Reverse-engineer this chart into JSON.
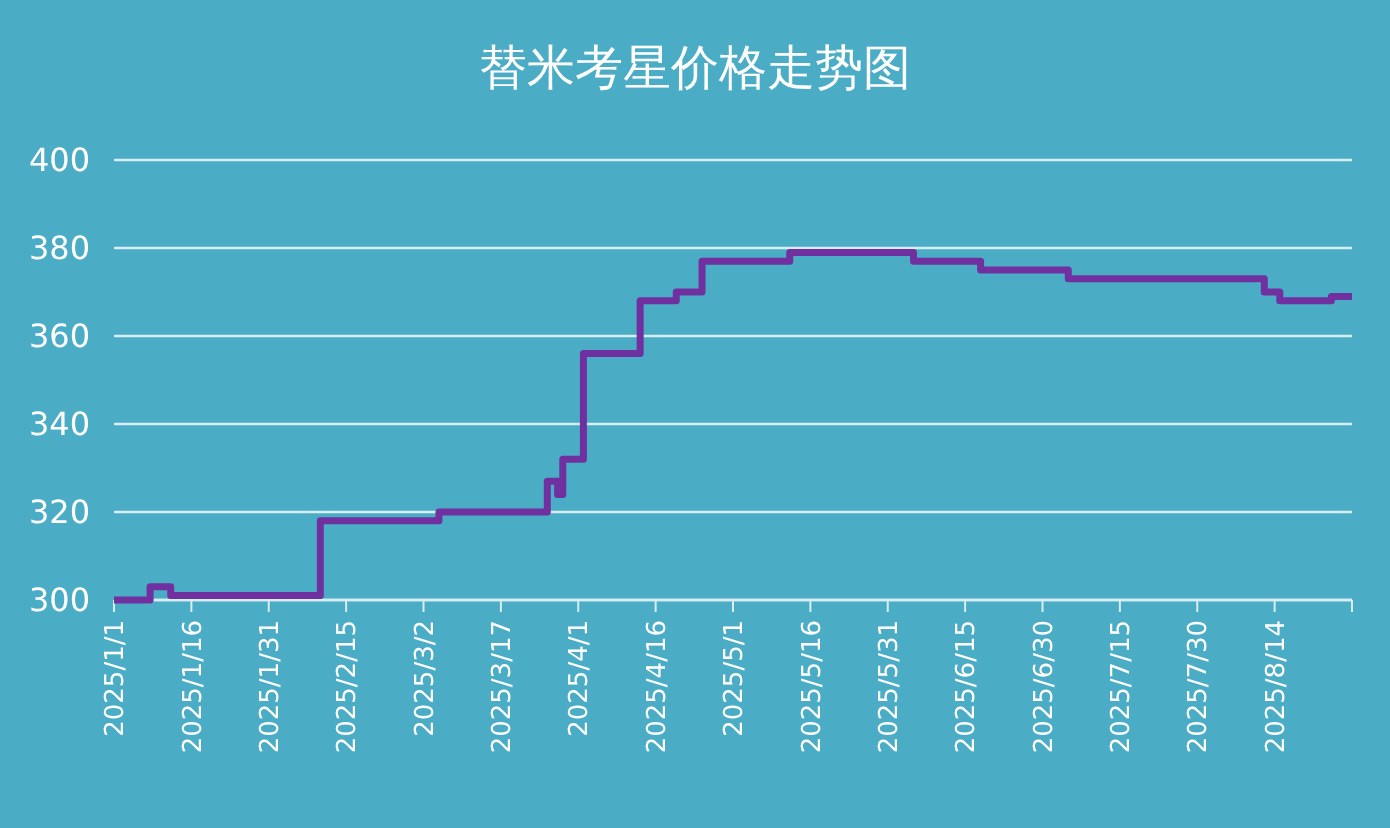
{
  "chart_data": {
    "type": "step",
    "title": "替米考星价格走势图",
    "x": [
      "2025-01-01",
      "2025-01-08",
      "2025-01-12",
      "2025-02-10",
      "2025-03-05",
      "2025-03-26",
      "2025-03-28",
      "2025-03-29",
      "2025-04-02",
      "2025-04-13",
      "2025-04-20",
      "2025-04-25",
      "2025-05-12",
      "2025-06-05",
      "2025-06-18",
      "2025-07-05",
      "2025-08-12",
      "2025-08-15",
      "2025-08-25",
      "2025-08-29"
    ],
    "series": [
      {
        "color": "#7030a0",
        "values": [
          300,
          303,
          301,
          318,
          320,
          327,
          324,
          332,
          356,
          368,
          370,
          377,
          379,
          377,
          375,
          373,
          370,
          368,
          369,
          369
        ]
      }
    ],
    "xlim": [
      "2025-01-01",
      "2025-08-29"
    ],
    "xticks": [
      {
        "value": "2025-01-01",
        "label": "2025/1/1"
      },
      {
        "value": "2025-01-16",
        "label": "2025/1/16"
      },
      {
        "value": "2025-01-31",
        "label": "2025/1/31"
      },
      {
        "value": "2025-02-15",
        "label": "2025/2/15"
      },
      {
        "value": "2025-03-02",
        "label": "2025/3/2"
      },
      {
        "value": "2025-03-17",
        "label": "2025/3/17"
      },
      {
        "value": "2025-04-01",
        "label": "2025/4/1"
      },
      {
        "value": "2025-04-16",
        "label": "2025/4/16"
      },
      {
        "value": "2025-05-01",
        "label": "2025/5/1"
      },
      {
        "value": "2025-05-16",
        "label": "2025/5/16"
      },
      {
        "value": "2025-05-31",
        "label": "2025/5/31"
      },
      {
        "value": "2025-06-15",
        "label": "2025/6/15"
      },
      {
        "value": "2025-06-30",
        "label": "2025/6/30"
      },
      {
        "value": "2025-07-15",
        "label": "2025/7/15"
      },
      {
        "value": "2025-07-30",
        "label": "2025/7/30"
      },
      {
        "value": "2025-08-14",
        "label": "2025/8/14"
      }
    ],
    "ylim": [
      300,
      400
    ],
    "yticks": [
      300,
      320,
      340,
      360,
      380,
      400
    ],
    "grid": "y",
    "line_style": "solid",
    "marker": "none"
  }
}
